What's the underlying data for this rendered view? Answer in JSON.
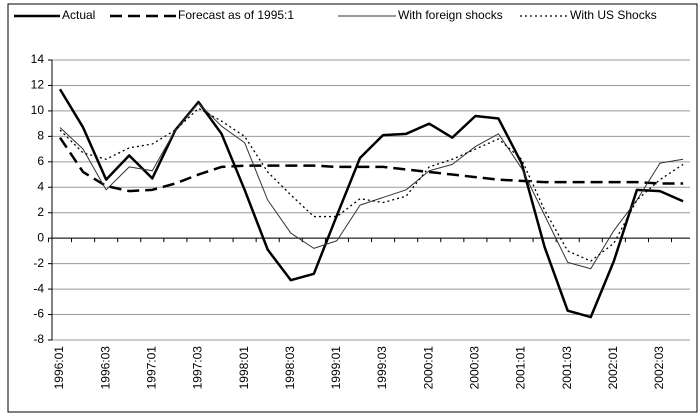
{
  "chart_data": {
    "type": "line",
    "categories": [
      "1996:01",
      null,
      "1996:03",
      null,
      "1997:01",
      null,
      "1997:03",
      null,
      "1998:01",
      null,
      "1998:03",
      null,
      "1999:01",
      null,
      "1999:03",
      null,
      "2000:01",
      null,
      "2000:03",
      null,
      "2001:01",
      null,
      "2001:03",
      null,
      "2002:01",
      null,
      "2002:03",
      null
    ],
    "series": [
      {
        "name": "Actual",
        "color": "#000000",
        "line_style": "solid",
        "line_width": 2.5,
        "values": [
          11.7,
          8.7,
          4.6,
          6.5,
          4.7,
          8.5,
          10.7,
          8.2,
          3.8,
          -0.9,
          -3.3,
          -2.8,
          1.8,
          6.3,
          8.1,
          8.2,
          9.0,
          7.9,
          9.6,
          9.4,
          5.9,
          -0.7,
          -5.7,
          -6.2,
          -1.8,
          3.8,
          3.7,
          2.9
        ]
      },
      {
        "name": "Forecast as of 1995:1",
        "color": "#000000",
        "line_style": "dashed",
        "line_width": 2.5,
        "values": [
          7.9,
          5.2,
          4.1,
          3.7,
          3.8,
          4.3,
          5.0,
          5.6,
          5.7,
          5.7,
          5.7,
          5.7,
          5.6,
          5.6,
          5.6,
          5.4,
          5.2,
          5.0,
          4.8,
          4.6,
          4.5,
          4.4,
          4.4,
          4.4,
          4.4,
          4.4,
          4.3,
          4.3
        ]
      },
      {
        "name": "With foreign shocks",
        "color": "#333333",
        "line_style": "solid",
        "line_width": 1,
        "values": [
          8.7,
          7.0,
          3.8,
          5.6,
          5.3,
          8.5,
          10.6,
          8.8,
          7.5,
          3.0,
          0.4,
          -0.8,
          -0.2,
          2.6,
          3.2,
          3.8,
          5.3,
          5.8,
          7.2,
          8.2,
          5.5,
          1.8,
          -1.9,
          -2.4,
          0.6,
          3.0,
          5.9,
          6.2
        ]
      },
      {
        "name": "With US Shocks",
        "color": "#000000",
        "line_style": "dotted",
        "line_width": 1.3,
        "values": [
          8.5,
          6.7,
          6.2,
          7.1,
          7.4,
          8.5,
          10.2,
          9.2,
          8.0,
          5.2,
          3.4,
          1.7,
          1.7,
          3.1,
          2.8,
          3.3,
          5.6,
          6.2,
          7.0,
          7.8,
          6.2,
          2.2,
          -1.0,
          -1.8,
          -0.4,
          3.0,
          4.6,
          5.8
        ]
      }
    ],
    "ylim": [
      -8,
      14
    ],
    "yticks": [
      -8,
      -6,
      -4,
      -2,
      0,
      2,
      4,
      6,
      8,
      10,
      12,
      14
    ],
    "grid": true,
    "legend": "top"
  }
}
